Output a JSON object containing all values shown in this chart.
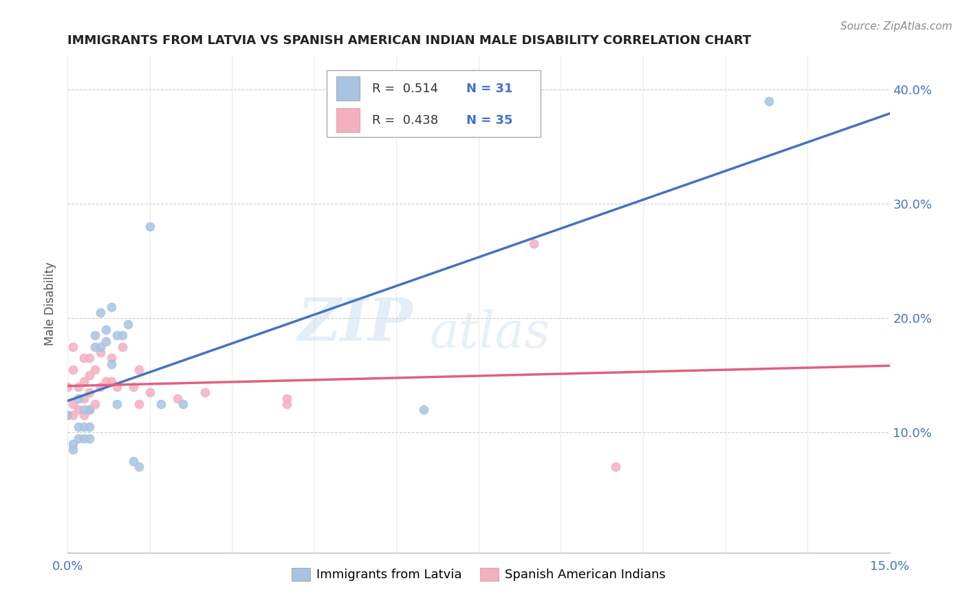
{
  "title": "IMMIGRANTS FROM LATVIA VS SPANISH AMERICAN INDIAN MALE DISABILITY CORRELATION CHART",
  "source": "Source: ZipAtlas.com",
  "ylabel_label": "Male Disability",
  "xlim": [
    0.0,
    0.15
  ],
  "ylim": [
    -0.005,
    0.43
  ],
  "xticks": [
    0.0,
    0.015,
    0.03,
    0.045,
    0.06,
    0.075,
    0.09,
    0.105,
    0.12,
    0.135,
    0.15
  ],
  "xtick_labels": [
    "0.0%",
    "",
    "",
    "",
    "",
    "",
    "",
    "",
    "",
    "",
    "15.0%"
  ],
  "yticks": [
    0.1,
    0.2,
    0.3,
    0.4
  ],
  "ytick_labels": [
    "10.0%",
    "20.0%",
    "30.0%",
    "40.0%"
  ],
  "color_blue": "#a8c4e0",
  "color_pink": "#f4b0c0",
  "line_blue": "#4472c4",
  "line_pink": "#e06080",
  "watermark_zip": "ZIP",
  "watermark_atlas": "atlas",
  "latvia_x": [
    0.0,
    0.001,
    0.001,
    0.002,
    0.002,
    0.002,
    0.003,
    0.003,
    0.003,
    0.004,
    0.004,
    0.004,
    0.005,
    0.005,
    0.006,
    0.006,
    0.007,
    0.007,
    0.008,
    0.008,
    0.009,
    0.009,
    0.01,
    0.011,
    0.012,
    0.013,
    0.015,
    0.017,
    0.021,
    0.065,
    0.128
  ],
  "latvia_y": [
    0.115,
    0.085,
    0.09,
    0.13,
    0.095,
    0.105,
    0.12,
    0.095,
    0.105,
    0.12,
    0.095,
    0.105,
    0.175,
    0.185,
    0.205,
    0.175,
    0.18,
    0.19,
    0.16,
    0.21,
    0.185,
    0.125,
    0.185,
    0.195,
    0.075,
    0.07,
    0.28,
    0.125,
    0.125,
    0.12,
    0.39
  ],
  "spanish_x": [
    0.0,
    0.0,
    0.001,
    0.001,
    0.001,
    0.001,
    0.002,
    0.002,
    0.003,
    0.003,
    0.003,
    0.003,
    0.004,
    0.004,
    0.004,
    0.004,
    0.005,
    0.005,
    0.006,
    0.006,
    0.007,
    0.008,
    0.008,
    0.009,
    0.01,
    0.012,
    0.013,
    0.013,
    0.015,
    0.02,
    0.025,
    0.04,
    0.04,
    0.085,
    0.1
  ],
  "spanish_y": [
    0.14,
    0.115,
    0.115,
    0.125,
    0.155,
    0.175,
    0.12,
    0.14,
    0.115,
    0.13,
    0.145,
    0.165,
    0.12,
    0.135,
    0.15,
    0.165,
    0.125,
    0.155,
    0.14,
    0.17,
    0.145,
    0.145,
    0.165,
    0.14,
    0.175,
    0.14,
    0.125,
    0.155,
    0.135,
    0.13,
    0.135,
    0.125,
    0.13,
    0.265,
    0.07
  ]
}
